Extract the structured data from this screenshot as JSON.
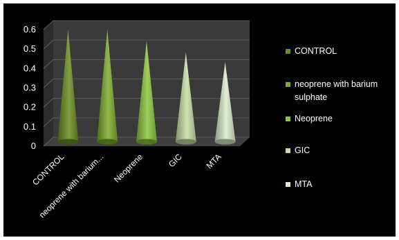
{
  "chart_data": {
    "type": "bar",
    "style": "3d-cone",
    "categories": [
      "CONTROL",
      "neoprene with barium sulphate",
      "Neoprene",
      "GIC",
      "MTA"
    ],
    "category_tick_labels": [
      "CONTROL",
      "neoprene with barium...",
      "Neoprene",
      "GIC",
      "MTA"
    ],
    "values": [
      0.58,
      0.58,
      0.52,
      0.46,
      0.41
    ],
    "ylim": [
      0,
      0.6
    ],
    "yticks": [
      "0",
      "0.1",
      "0.2",
      "0.3",
      "0.4",
      "0.5",
      "0.6"
    ],
    "title": "",
    "xlabel": "",
    "ylabel": "",
    "legend_position": "right",
    "legend": [
      {
        "label": "CONTROL",
        "color": "#6b8e23"
      },
      {
        "label": "neoprene with barium sulphate",
        "color": "#7cab2e"
      },
      {
        "label": "Neoprene",
        "color": "#8cc63f"
      },
      {
        "label": "GIC",
        "color": "#c4dea3"
      },
      {
        "label": "MTA",
        "color": "#dcebcb"
      }
    ],
    "colors": {
      "background": "#000000",
      "wall": "#3a3a3a",
      "floor": "#3f3f3f",
      "gridline": "#5e5e5e",
      "text": "#ffffff"
    }
  }
}
